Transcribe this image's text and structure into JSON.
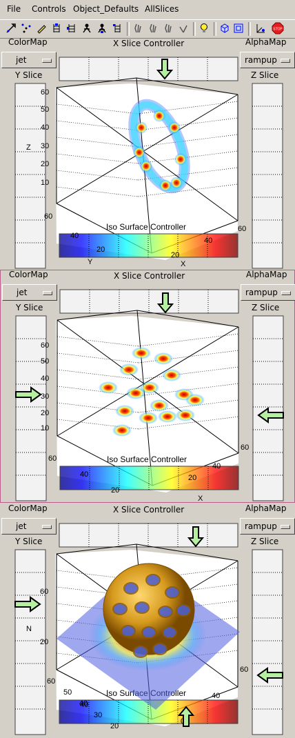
{
  "menu": [
    "File",
    "Controls",
    "Object_Defaults",
    "AllSlices"
  ],
  "toolbar_icons": [
    "arrow-tool-icon",
    "scatter-tool-icon",
    "pencil-tool-icon",
    "ladder-tool-icon",
    "ladder-tool-icon",
    "person-tool-icon",
    "person-tool-icon",
    "ladder-tool-icon",
    "hand-tool-icon",
    "hand-tool-icon",
    "hand-tool-icon",
    "hand-tool-icon",
    "lightbulb-icon",
    "cube-icon",
    "panel-icon",
    "axes-tool-icon",
    "stop-icon"
  ],
  "panels": [
    {
      "colormap_label": "ColorMap",
      "colormap_value": "jet",
      "alphamap_label": "AlphaMap",
      "alphamap_value": "rampup",
      "xslice_label": "X Slice Controller",
      "yslice_label": "Y Slice",
      "zslice_label": "Z Slice",
      "iso_label": "Iso Surface Controller",
      "z_ticks": [
        "60",
        "50",
        "40",
        "30",
        "20",
        "10"
      ],
      "z_axis_letter": "Z",
      "left_tick": "60",
      "right_tick": "60",
      "bar_ticks": [
        "40",
        "20",
        "20",
        "40"
      ],
      "y_axis_letter": "Y",
      "x_axis_letter": "X"
    },
    {
      "colormap_label": "ColorMap",
      "colormap_value": "jet",
      "alphamap_label": "AlphaMap",
      "alphamap_value": "rampup",
      "xslice_label": "X Slice Controller",
      "yslice_label": "Y Slice",
      "zslice_label": "Z Slice",
      "iso_label": "Iso Surface Controller",
      "z_ticks": [
        "60",
        "50",
        "40",
        "30",
        "20",
        "10"
      ],
      "left_tick": "60",
      "right_tick": "60",
      "bar_ticks": [
        "40",
        "20",
        "20",
        "40"
      ],
      "x_axis_letter": "X"
    },
    {
      "colormap_label": "ColorMap",
      "colormap_value": "jet",
      "alphamap_label": "AlphaMap",
      "alphamap_value": "rampup",
      "xslice_label": "X Slice Controller",
      "yslice_label": "Y Slice",
      "zslice_label": "Z Slice",
      "iso_label": "Iso Surface Controller",
      "z_ticks": [
        "60",
        "20"
      ],
      "z_axis_letter": "N",
      "left_ticks": [
        "60",
        "50",
        "40"
      ],
      "right_ticks": [
        "60",
        "40"
      ],
      "bar_ticks": [
        "40",
        "30",
        "20",
        "0"
      ]
    }
  ],
  "colors": {
    "bg": "#d4d0c8",
    "plot_bg": "#ffffff",
    "frame": "#b85a8a",
    "arrow_fill": "#b4f0a0",
    "torus": "#d69a1e"
  }
}
